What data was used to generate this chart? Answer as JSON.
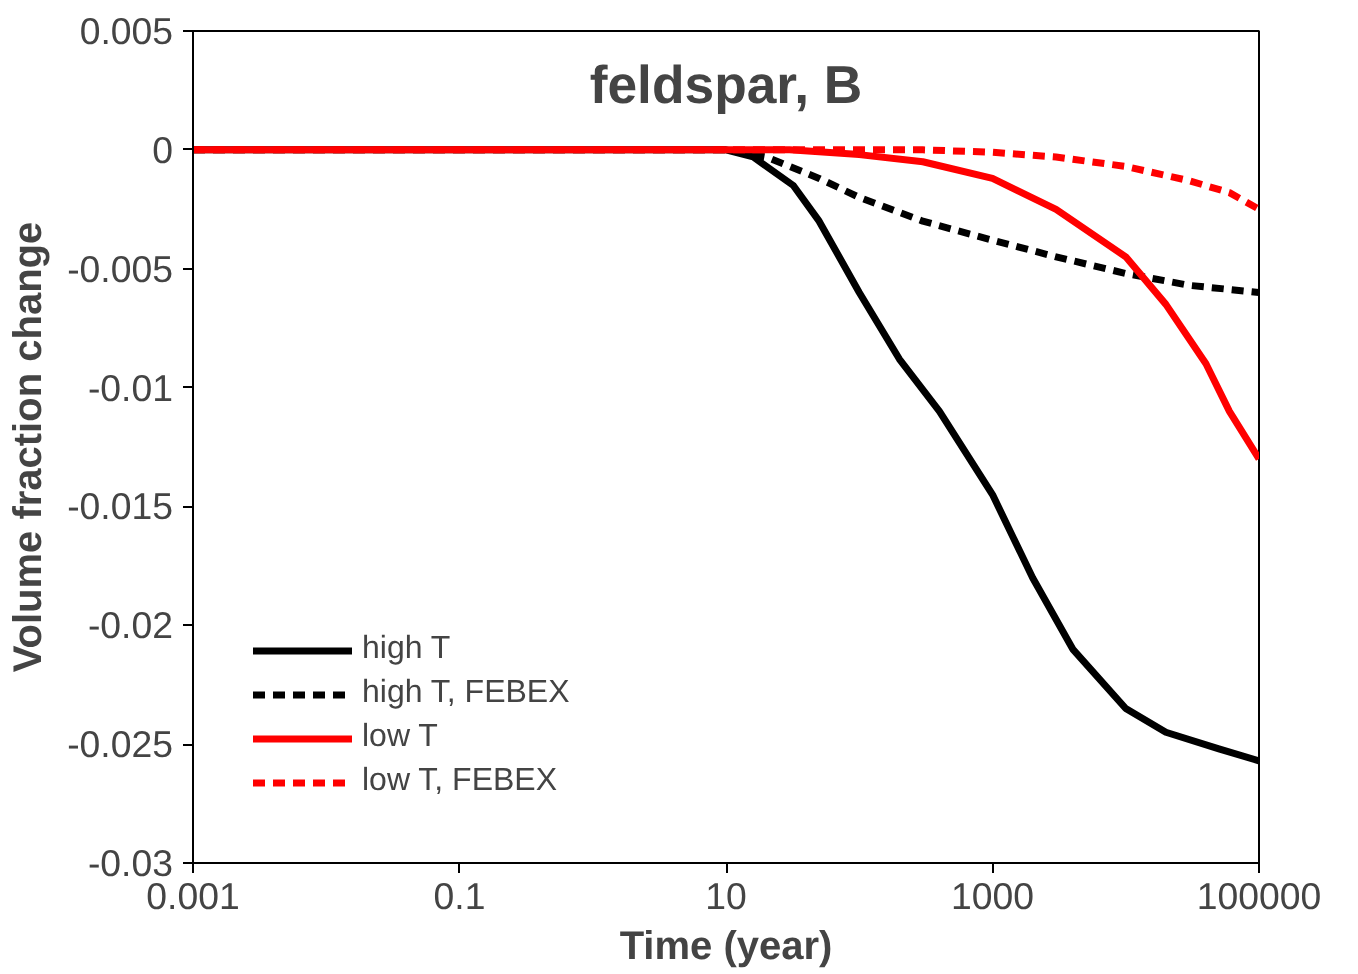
{
  "chart_data": {
    "type": "line",
    "title": "feldspar, B",
    "xlabel": "Time (year)",
    "ylabel": "Volume fraction change",
    "log": "x",
    "xlim": [
      0.001,
      100000
    ],
    "xticks": [
      0.001,
      0.1,
      10,
      1000,
      100000
    ],
    "ylim": [
      -0.03,
      0.005
    ],
    "yticks": [
      -0.03,
      -0.025,
      -0.02,
      -0.015,
      -0.01,
      -0.005,
      0,
      0.005
    ],
    "grid": false,
    "legend": "bottom left",
    "marker": "none",
    "series": [
      {
        "name": "high T",
        "color": "#000000",
        "line_style": "solid",
        "x": [
          0.001,
          10,
          16,
          32,
          50,
          100,
          200,
          400,
          1000,
          2000,
          4000,
          10000,
          20000,
          50000,
          100000
        ],
        "values": [
          0,
          0,
          -0.0003,
          -0.0015,
          -0.003,
          -0.006,
          -0.0088,
          -0.011,
          -0.0145,
          -0.018,
          -0.021,
          -0.0235,
          -0.0245,
          -0.0252,
          -0.0257
        ]
      },
      {
        "name": "high T, FEBEX",
        "color": "#000000",
        "line_style": "dashed",
        "x": [
          0.001,
          10,
          20,
          50,
          100,
          300,
          1000,
          3000,
          10000,
          30000,
          100000
        ],
        "values": [
          0,
          0,
          -0.0003,
          -0.0012,
          -0.002,
          -0.003,
          -0.0038,
          -0.0045,
          -0.0052,
          -0.0057,
          -0.006
        ]
      },
      {
        "name": "low T",
        "color": "#ff0000",
        "line_style": "solid",
        "x": [
          0.001,
          30,
          100,
          300,
          1000,
          3000,
          10000,
          20000,
          40000,
          60000,
          100000
        ],
        "values": [
          0,
          0,
          -0.0002,
          -0.0005,
          -0.0012,
          -0.0025,
          -0.0045,
          -0.0065,
          -0.009,
          -0.011,
          -0.013
        ]
      },
      {
        "name": "low T, FEBEX",
        "color": "#ff0000",
        "line_style": "dashed",
        "x": [
          0.001,
          300,
          1000,
          3000,
          10000,
          30000,
          60000,
          100000
        ],
        "values": [
          0,
          0,
          -0.0001,
          -0.0003,
          -0.0007,
          -0.0013,
          -0.0018,
          -0.0025
        ]
      }
    ]
  }
}
